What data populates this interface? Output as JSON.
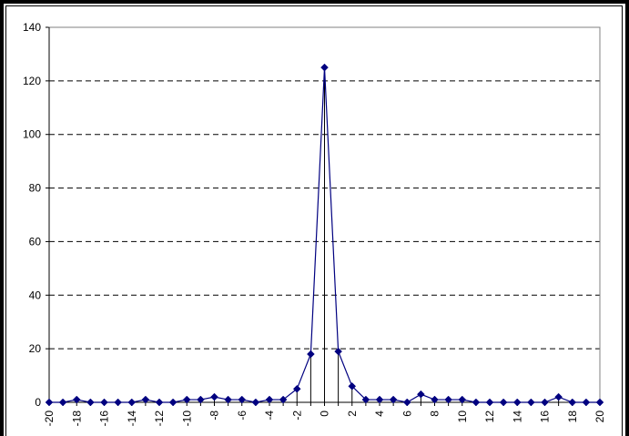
{
  "chart_data": {
    "type": "line",
    "title": "",
    "xlabel": "",
    "ylabel": "",
    "x": [
      -20,
      -19,
      -18,
      -17,
      -16,
      -15,
      -14,
      -13,
      -12,
      -11,
      -10,
      -9,
      -8,
      -7,
      -6,
      -5,
      -4,
      -3,
      -2,
      -1,
      0,
      1,
      2,
      3,
      4,
      5,
      6,
      7,
      8,
      9,
      10,
      11,
      12,
      13,
      14,
      15,
      16,
      17,
      18,
      19,
      20
    ],
    "series": [
      {
        "values": [
          0,
          0,
          1,
          0,
          0,
          0,
          0,
          1,
          0,
          0,
          1,
          1,
          2,
          1,
          1,
          0,
          1,
          1,
          5,
          18,
          125,
          19,
          6,
          1,
          1,
          1,
          0,
          3,
          1,
          1,
          1,
          0,
          0,
          0,
          0,
          0,
          0,
          2,
          0,
          0,
          0
        ]
      }
    ],
    "xlim": [
      -20,
      20
    ],
    "ylim": [
      0,
      140
    ],
    "yticks": [
      "0",
      "20",
      "40",
      "60",
      "80",
      "100",
      "120",
      "140"
    ],
    "xticks": [
      "-20",
      "-18",
      "-16",
      "-14",
      "-12",
      "-10",
      "-8",
      "-6",
      "-4",
      "-2",
      "0",
      "2",
      "4",
      "6",
      "8",
      "10",
      "12",
      "14",
      "16",
      "18",
      "20"
    ],
    "grid": "horizontal dashed",
    "drop_lines": true,
    "legend": "none",
    "colors": {
      "line": "#000080",
      "marker": "#000080",
      "frame": "#000000",
      "grid": "#000000"
    }
  }
}
